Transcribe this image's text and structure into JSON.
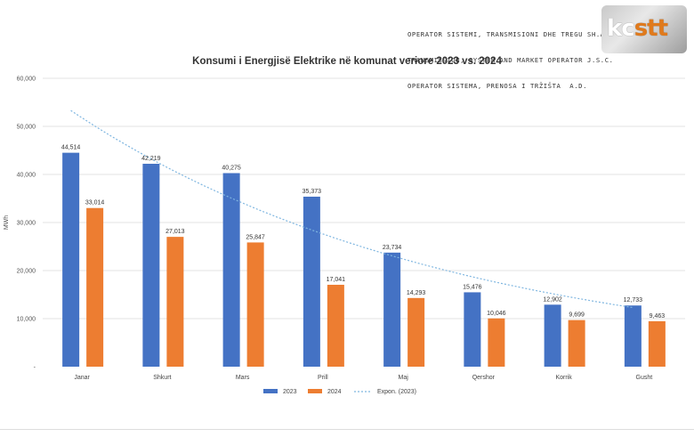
{
  "header": {
    "lines": [
      "OPERATOR SISTEMI, TRANSMISIONI DHE TREGU SH.A.",
      "TRANSMISSION, SYSTEM AND MARKET OPERATOR J.S.C.",
      "OPERATOR SISTEMA, PRENOSA I TRŽIŠTA  A.D."
    ],
    "logo_text_main": "kc",
    "logo_text_accent": "stt"
  },
  "colors": {
    "series_2023": "#4472c4",
    "series_2024": "#ed7d31",
    "trendline": "#7fb6e0",
    "gridline": "#e3e3e3"
  },
  "chart_data": {
    "type": "bar",
    "title": "Konsumi i Energjisë Elektrike në komunat veriore 2023 vs. 2024",
    "ylabel": "MWh",
    "xlabel": "",
    "ylim": [
      0,
      60000
    ],
    "yticks": [
      0,
      10000,
      20000,
      30000,
      40000,
      50000,
      60000
    ],
    "ytick_labels": [
      "-",
      "10,000",
      "20,000",
      "30,000",
      "40,000",
      "50,000",
      "60,000"
    ],
    "grid": true,
    "legend_position": "bottom-center",
    "categories": [
      "Janar",
      "Shkurt",
      "Mars",
      "Prill",
      "Maj",
      "Qershor",
      "Korrik",
      "Gusht"
    ],
    "series": [
      {
        "name": "2023",
        "values": [
          44514,
          42219,
          40275,
          35373,
          23734,
          15476,
          12902,
          12733
        ],
        "labels": [
          "44,514",
          "42,219",
          "40,275",
          "35,373",
          "23,734",
          "15,476",
          "12,902",
          "12,733"
        ]
      },
      {
        "name": "2024",
        "values": [
          33014,
          27013,
          25847,
          17041,
          14293,
          10046,
          9699,
          9463
        ],
        "labels": [
          "33,014",
          "27,013",
          "25,847",
          "17,041",
          "14,293",
          "10,046",
          "9,699",
          "9,463"
        ]
      }
    ],
    "trendline": {
      "name": "Expon. (2023)",
      "type": "exponential",
      "of_series": "2023",
      "start_value": 53300,
      "end_value": 12300
    }
  }
}
